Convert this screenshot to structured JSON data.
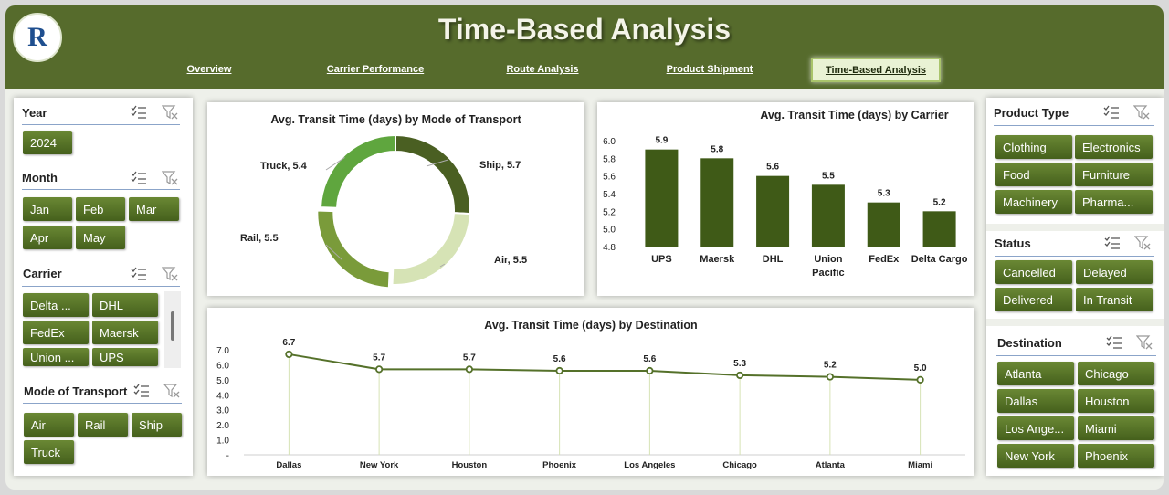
{
  "header": {
    "title": "Time-Based Analysis",
    "logo_letter": "R",
    "tabs": [
      {
        "label": "Overview"
      },
      {
        "label": "Carrier Performance"
      },
      {
        "label": "Route Analysis"
      },
      {
        "label": "Product Shipment"
      },
      {
        "label": "Time-Based Analysis",
        "active": true
      }
    ]
  },
  "left_slicers": {
    "year": {
      "title": "Year",
      "items": [
        "2024"
      ]
    },
    "month": {
      "title": "Month",
      "items": [
        "Jan",
        "Feb",
        "Mar",
        "Apr",
        "May"
      ]
    },
    "carrier": {
      "title": "Carrier",
      "items": [
        "Delta ...",
        "DHL",
        "FedEx",
        "Maersk",
        "Union ...",
        "UPS"
      ]
    },
    "mode": {
      "title": "Mode of Transport",
      "items": [
        "Air",
        "Rail",
        "Ship",
        "Truck"
      ]
    }
  },
  "right_slicers": {
    "product_type": {
      "title": "Product Type",
      "items": [
        "Clothing",
        "Electronics",
        "Food",
        "Furniture",
        "Machinery",
        "Pharma..."
      ]
    },
    "status": {
      "title": "Status",
      "items": [
        "Cancelled",
        "Delayed",
        "Delivered",
        "In Transit"
      ]
    },
    "destination": {
      "title": "Destination",
      "items": [
        "Atlanta",
        "Chicago",
        "Dallas",
        "Houston",
        "Los Ange...",
        "Miami",
        "New York",
        "Phoenix"
      ]
    }
  },
  "colors": {
    "header": "#566b2c",
    "button": "#55712a",
    "dark_bar": "#3f5a17",
    "light": "#d6e3b5"
  },
  "chart_data": [
    {
      "type": "pie",
      "title": "Avg. Transit Time (days) by Mode of Transport",
      "categories": [
        "Ship",
        "Air",
        "Rail",
        "Truck"
      ],
      "values": [
        5.7,
        5.5,
        5.5,
        5.4
      ],
      "labels": [
        "Ship, 5.7",
        "Air, 5.5",
        "Rail, 5.5",
        "Truck, 5.4"
      ],
      "colors": [
        "#4a5f22",
        "#d6e3b5",
        "#7a9b3a",
        "#5fa63e"
      ]
    },
    {
      "type": "bar",
      "title": "Avg. Transit Time (days) by Carrier",
      "categories": [
        "UPS",
        "Maersk",
        "DHL",
        "Union Pacific",
        "FedEx",
        "Delta Cargo"
      ],
      "values": [
        5.9,
        5.8,
        5.6,
        5.5,
        5.3,
        5.2
      ],
      "ylim": [
        4.8,
        6.0
      ],
      "yticks": [
        "6.0",
        "5.8",
        "5.6",
        "5.4",
        "5.2",
        "5.0",
        "4.8"
      ]
    },
    {
      "type": "line",
      "title": "Avg. Transit Time (days) by Destination",
      "categories": [
        "Dallas",
        "New York",
        "Houston",
        "Phoenix",
        "Los Angeles",
        "Chicago",
        "Atlanta",
        "Miami"
      ],
      "values": [
        6.7,
        5.7,
        5.7,
        5.6,
        5.6,
        5.3,
        5.2,
        5.0
      ],
      "ylim": [
        0,
        7.0
      ],
      "yticks": [
        "7.0",
        "6.0",
        "5.0",
        "4.0",
        "3.0",
        "2.0",
        "1.0",
        "-"
      ]
    }
  ]
}
